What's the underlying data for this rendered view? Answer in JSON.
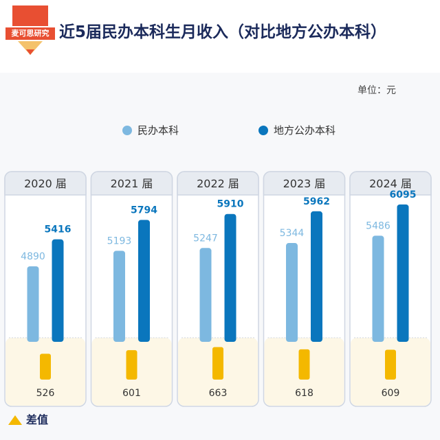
{
  "header": {
    "title": "近5届民办本科生月收入（对比地方公办本科）",
    "logo_text": "麦可思研究"
  },
  "unit_label": "单位：元",
  "legend": {
    "private": "民办本科",
    "public": "地方公办本科",
    "diff": "差值"
  },
  "colors": {
    "private": "#7db8e0",
    "public": "#0a76bd",
    "diff": "#f4b800",
    "title": "#1b2a5b"
  },
  "chart_data": {
    "type": "bar",
    "categories": [
      "2020 届",
      "2021 届",
      "2022 届",
      "2023 届",
      "2024 届"
    ],
    "series": [
      {
        "name": "民办本科",
        "values": [
          4890,
          5193,
          5247,
          5344,
          5486
        ]
      },
      {
        "name": "地方公办本科",
        "values": [
          5416,
          5794,
          5910,
          5962,
          6095
        ]
      }
    ],
    "diff": {
      "name": "差值",
      "values": [
        526,
        601,
        663,
        618,
        609
      ]
    },
    "ylabel": "单位：元",
    "ylim": [
      3500,
      6200
    ]
  }
}
